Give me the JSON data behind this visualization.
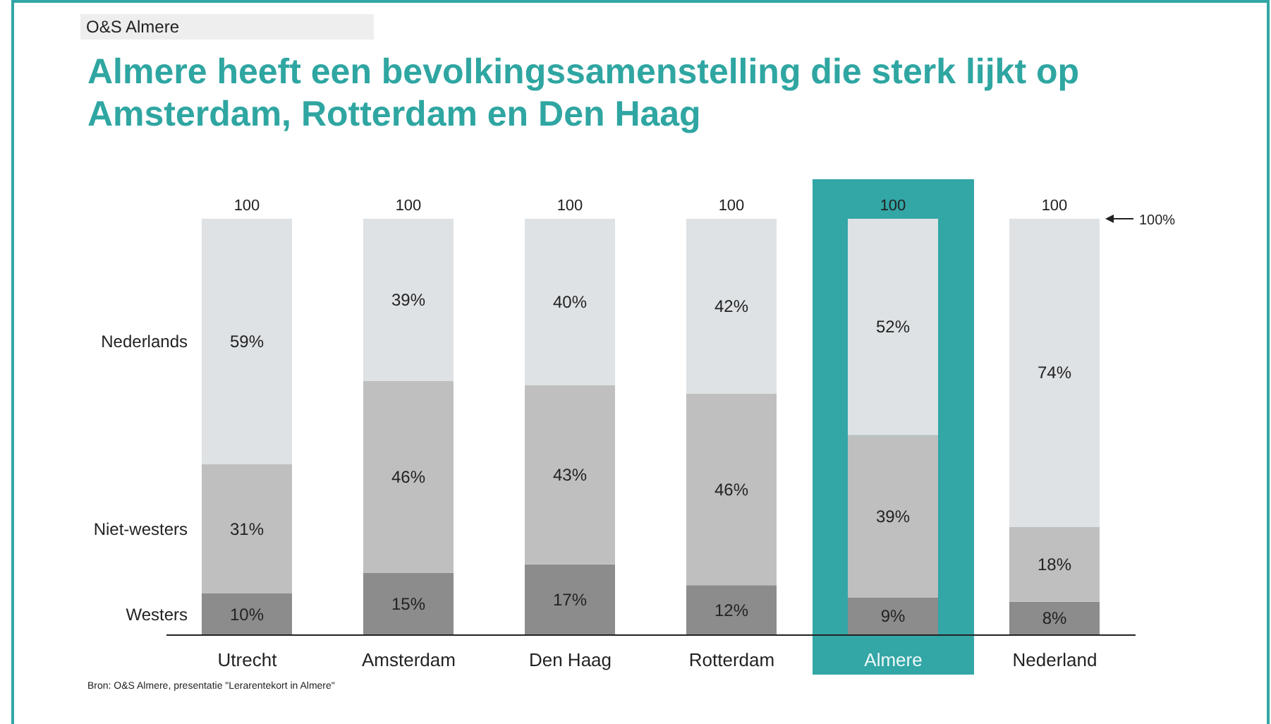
{
  "chart_data": {
    "type": "bar",
    "title": "Almere heeft een bevolkingssamenstelling die sterk lijkt op Amsterdam, Rotterdam en Den Haag",
    "subtitle": "O&S Almere",
    "categories": [
      "Utrecht",
      "Amsterdam",
      "Den Haag",
      "Rotterdam",
      "Almere",
      "Nederland"
    ],
    "series": [
      {
        "name": "Westers",
        "color": "#8c8c8c",
        "values": [
          10,
          15,
          17,
          12,
          9,
          8
        ],
        "value_labels": [
          "10%",
          "15%",
          "17%",
          "12%",
          "9%",
          "8%"
        ]
      },
      {
        "name": "Niet-westers",
        "color": "#bfbfbf",
        "values": [
          31,
          46,
          43,
          46,
          39,
          18
        ],
        "value_labels": [
          "31%",
          "46%",
          "43%",
          "46%",
          "39%",
          "18%"
        ]
      },
      {
        "name": "Nederlands",
        "color": "#dee2e5",
        "values": [
          59,
          39,
          40,
          42,
          52,
          74
        ],
        "value_labels": [
          "59%",
          "39%",
          "40%",
          "42%",
          "52%",
          "74%"
        ]
      }
    ],
    "stacked": true,
    "legend": false,
    "grid": false,
    "totals": [
      "100",
      "100",
      "100",
      "100",
      "100",
      "100"
    ],
    "bands": [
      {
        "axis": "x",
        "from": "Almere",
        "to": "Almere",
        "color": "#33a6a6"
      }
    ],
    "annotations": [
      "100%",
      "Bron: O&S Almere, presentatie \"Lerarentekort in Almere\""
    ]
  }
}
